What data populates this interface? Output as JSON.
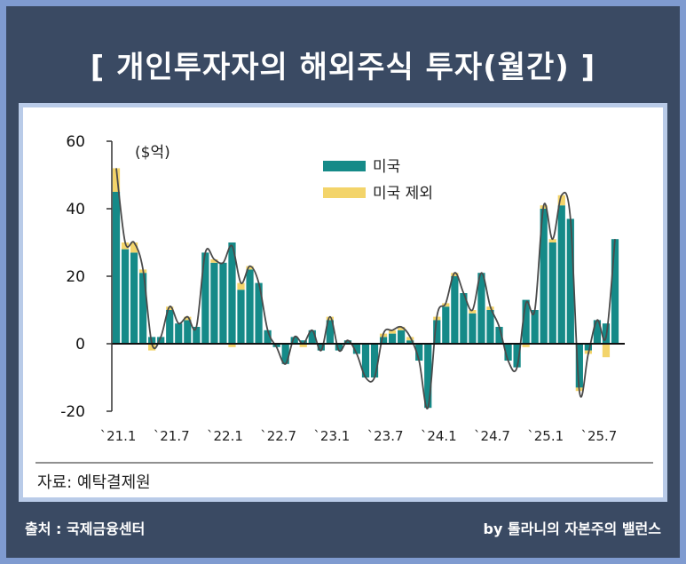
{
  "header": {
    "title": "[ 개인투자자의 해외주식 투자(월간) ]"
  },
  "footer": {
    "source": "출처 : 국제금융센터",
    "credit": "by 톨라니의 자본주의 밸런스"
  },
  "colors": {
    "us": "#158a88",
    "ex_us": "#f3d46a",
    "line": "#4a4a4a",
    "axis": "#111111"
  },
  "chart_data": {
    "type": "bar",
    "title": "",
    "unit_label": "($억)",
    "source_note": "자료: 예탁결제원",
    "ylim": [
      -20,
      60
    ],
    "yticks": [
      -20,
      0,
      20,
      40,
      60
    ],
    "xtick_labels": [
      "`21.1",
      "`21.7",
      "`22.1",
      "`22.7",
      "`23.1",
      "`23.7",
      "`24.1",
      "`24.7",
      "`25.1",
      "`25.7"
    ],
    "xtick_positions": [
      0,
      6,
      12,
      18,
      24,
      30,
      36,
      42,
      48,
      54
    ],
    "legend": [
      "미국",
      "미국 제외"
    ],
    "series": [
      {
        "name": "미국",
        "values": [
          45,
          28,
          27,
          21,
          2,
          2,
          10,
          6,
          7,
          5,
          27,
          24,
          24,
          30,
          16,
          22,
          18,
          4,
          -1,
          -6,
          2,
          1,
          4,
          -2,
          7,
          -2,
          1,
          -3,
          -10,
          -10,
          2,
          3,
          4,
          1,
          -5,
          -19,
          7,
          11,
          20,
          15,
          9,
          21,
          10,
          5,
          -5,
          -7,
          13,
          10,
          40,
          30,
          41,
          37,
          -13,
          -2,
          7,
          6,
          31
        ]
      },
      {
        "name": "미국 제외",
        "values": [
          7,
          2,
          3,
          1,
          -2,
          0,
          1,
          0,
          1,
          0,
          0,
          1,
          0,
          -1,
          2,
          1,
          0,
          0,
          0,
          0,
          0,
          -1,
          0,
          0,
          1,
          0,
          0,
          0,
          0,
          0,
          1,
          1,
          1,
          1,
          0,
          0,
          1,
          1,
          1,
          0,
          1,
          0,
          1,
          0,
          0,
          0,
          -1,
          0,
          1,
          1,
          3,
          0,
          -1,
          -1,
          0,
          -4,
          0
        ]
      }
    ]
  }
}
